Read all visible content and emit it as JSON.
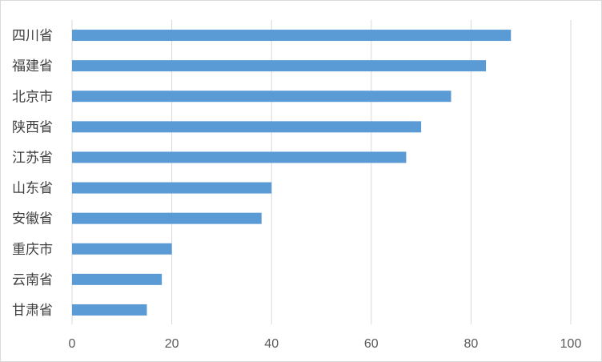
{
  "chart_data": {
    "type": "bar",
    "orientation": "horizontal",
    "categories": [
      "四川省",
      "福建省",
      "北京市",
      "陕西省",
      "江苏省",
      "山东省",
      "安徽省",
      "重庆市",
      "云南省",
      "甘肃省"
    ],
    "values": [
      88,
      83,
      76,
      70,
      67,
      40,
      38,
      20,
      18,
      15
    ],
    "xlim": [
      0,
      100
    ],
    "xticks": [
      0,
      20,
      40,
      60,
      80,
      100
    ],
    "grid": true,
    "legend": "none",
    "bar_color": "#5b9bd5"
  }
}
